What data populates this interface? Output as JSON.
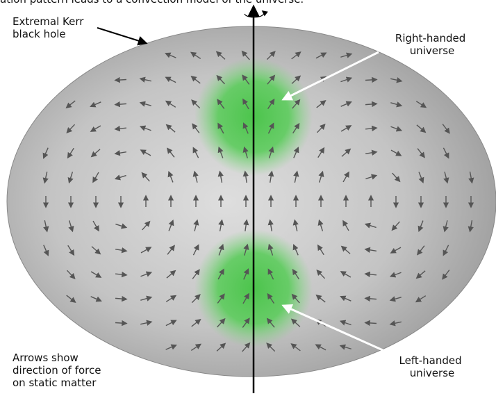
{
  "caption": "ation pattern leads to a convection model of the universe.",
  "labels": {
    "black_hole": [
      "Extremal Kerr",
      "black hole"
    ],
    "right": [
      "Right-handed",
      "universe"
    ],
    "left": [
      "Left-handed",
      "universe"
    ],
    "arrows": [
      "Arrows show",
      "direction of force",
      "on static matter"
    ]
  }
}
